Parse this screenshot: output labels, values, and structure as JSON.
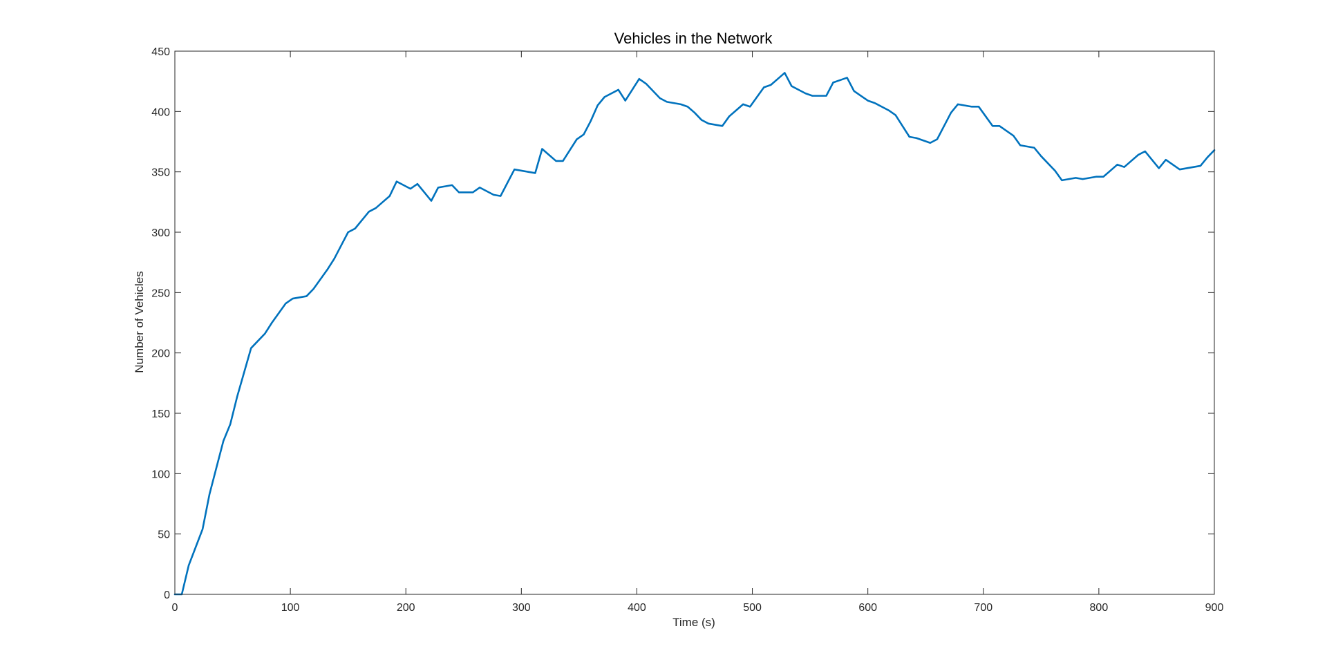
{
  "chart_data": {
    "type": "line",
    "title": "Vehicles in the Network",
    "xlabel": "Time (s)",
    "ylabel": "Number of Vehicles",
    "xlim": [
      0,
      900
    ],
    "ylim": [
      0,
      450
    ],
    "xticks": [
      0,
      100,
      200,
      300,
      400,
      500,
      600,
      700,
      800,
      900
    ],
    "yticks": [
      0,
      50,
      100,
      150,
      200,
      250,
      300,
      350,
      400,
      450
    ],
    "grid": false,
    "line_color": "#0072BD",
    "axis_color": "#262626",
    "series": [
      {
        "x": [
          0,
          6,
          12,
          18,
          24,
          30,
          36,
          42,
          48,
          54,
          60,
          66,
          72,
          78,
          84,
          90,
          96,
          102,
          108,
          114,
          120,
          126,
          132,
          138,
          144,
          150,
          156,
          162,
          168,
          174,
          180,
          186,
          192,
          198,
          204,
          210,
          216,
          222,
          228,
          234,
          240,
          246,
          252,
          258,
          264,
          270,
          276,
          282,
          288,
          294,
          300,
          306,
          312,
          318,
          324,
          330,
          336,
          342,
          348,
          354,
          360,
          366,
          372,
          378,
          384,
          390,
          396,
          402,
          408,
          414,
          420,
          426,
          432,
          438,
          444,
          450,
          456,
          462,
          468,
          474,
          480,
          486,
          492,
          498,
          504,
          510,
          516,
          522,
          528,
          534,
          540,
          546,
          552,
          558,
          564,
          570,
          576,
          582,
          588,
          594,
          600,
          606,
          612,
          618,
          624,
          630,
          636,
          642,
          648,
          654,
          660,
          666,
          672,
          678,
          684,
          690,
          696,
          702,
          708,
          714,
          720,
          726,
          732,
          738,
          744,
          750,
          756,
          762,
          768,
          774,
          780,
          786,
          792,
          798,
          804,
          810,
          816,
          822,
          828,
          834,
          840,
          846,
          852,
          858,
          864,
          870,
          876,
          882,
          888,
          894,
          900
        ],
        "y": [
          0,
          0,
          24,
          39,
          54,
          83,
          105,
          127,
          141,
          164,
          184,
          204,
          210,
          216,
          225,
          233,
          241,
          245,
          246,
          247,
          253,
          261,
          269,
          278,
          289,
          300,
          303,
          310,
          317,
          320,
          325,
          330,
          342,
          339,
          336,
          340,
          333,
          326,
          337,
          338,
          339,
          333,
          333,
          333,
          337,
          334,
          331,
          330,
          341,
          352,
          351,
          350,
          349,
          369,
          364,
          359,
          359,
          368,
          377,
          381,
          392,
          405,
          412,
          415,
          418,
          409,
          418,
          427,
          423,
          417,
          411,
          408,
          407,
          406,
          404,
          399,
          393,
          390,
          389,
          388,
          396,
          401,
          406,
          404,
          412,
          420,
          422,
          427,
          432,
          421,
          418,
          415,
          413,
          413,
          413,
          424,
          426,
          428,
          417,
          413,
          409,
          407,
          404,
          401,
          397,
          388,
          379,
          378,
          376,
          374,
          377,
          388,
          399,
          406,
          405,
          404,
          404,
          396,
          388,
          388,
          384,
          380,
          372,
          371,
          370,
          363,
          357,
          351,
          343,
          344,
          345,
          344,
          345,
          346,
          346,
          351,
          356,
          354,
          359,
          364,
          367,
          360,
          353,
          360,
          356,
          352,
          353,
          354,
          355,
          362,
          368
        ]
      }
    ]
  }
}
